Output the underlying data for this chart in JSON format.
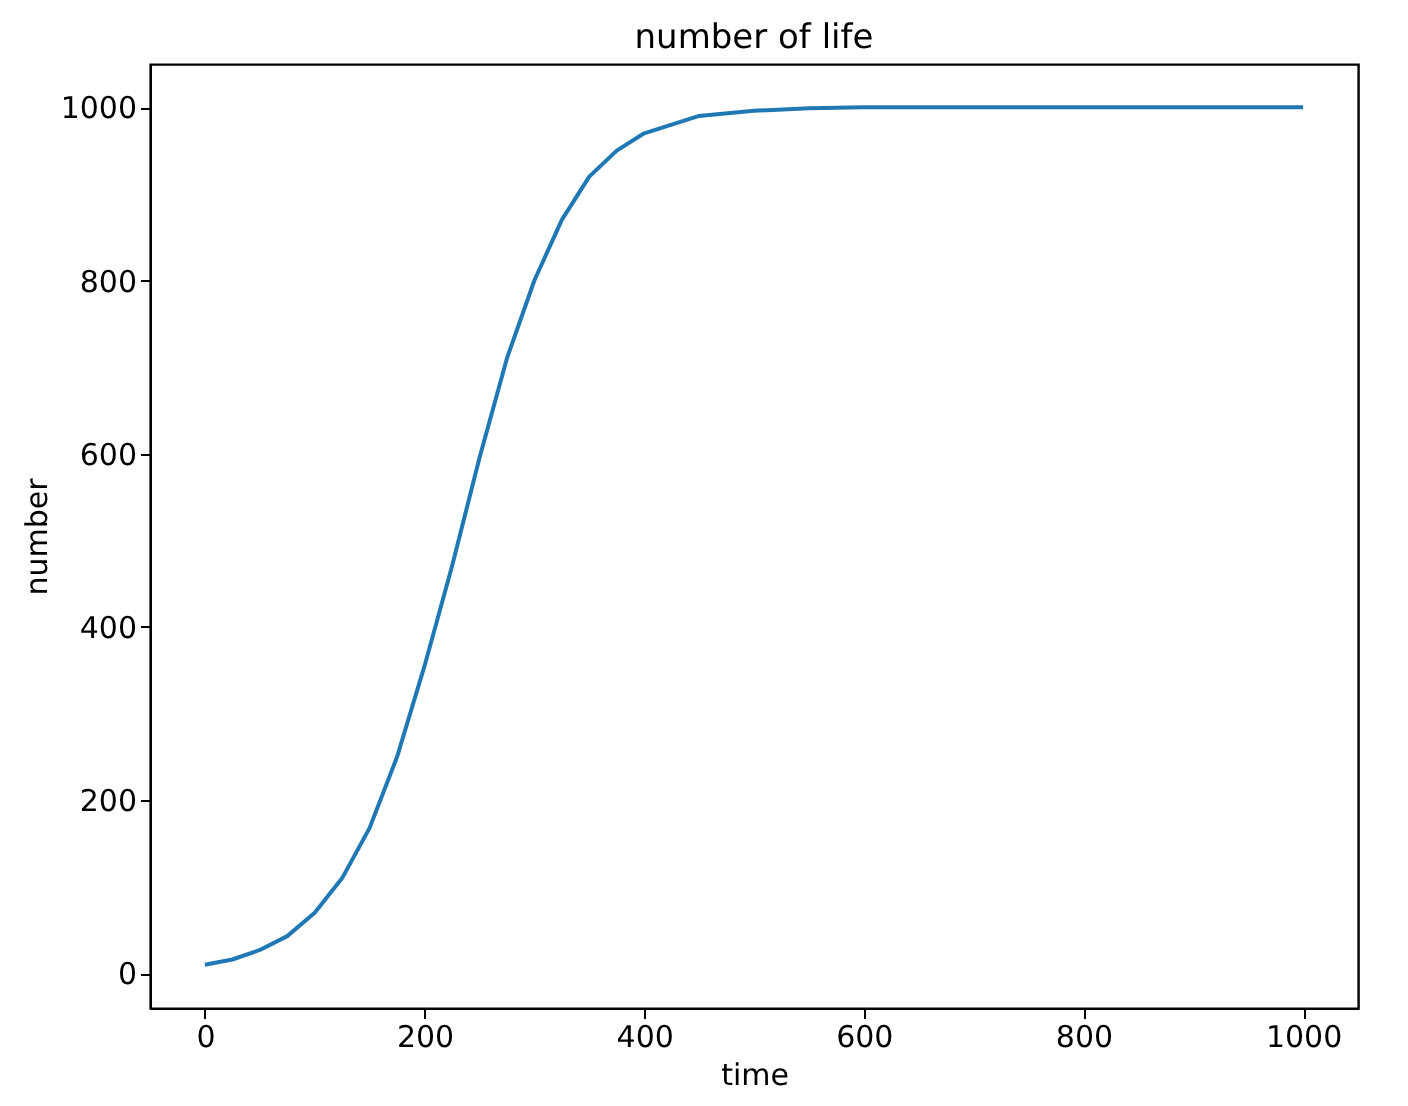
{
  "chart_data": {
    "type": "line",
    "title": "number of life",
    "xlabel": "time",
    "ylabel": "number",
    "x": [
      0,
      25,
      50,
      75,
      100,
      125,
      150,
      175,
      200,
      225,
      250,
      275,
      300,
      325,
      350,
      375,
      400,
      450,
      500,
      550,
      600,
      700,
      800,
      900,
      1000
    ],
    "series": [
      {
        "color": "#1f77b4",
        "values": [
          10,
          16,
          27,
          43,
          70,
          110,
          168,
          250,
          355,
          470,
          595,
          710,
          800,
          870,
          920,
          950,
          970,
          990,
          996,
          999,
          1000,
          1000,
          1000,
          1000,
          1000
        ]
      }
    ],
    "xlim": [
      -50,
      1050
    ],
    "ylim": [
      -40,
      1050
    ],
    "xticks": [
      0,
      200,
      400,
      600,
      800,
      1000
    ],
    "yticks": [
      0,
      200,
      400,
      600,
      800,
      1000
    ],
    "grid": false,
    "legend": false,
    "line_style": "solid",
    "marker": "none"
  }
}
